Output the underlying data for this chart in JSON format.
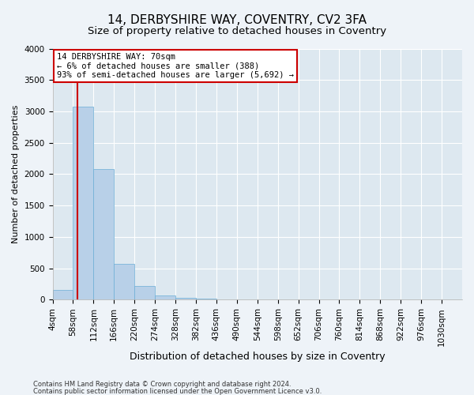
{
  "title1": "14, DERBYSHIRE WAY, COVENTRY, CV2 3FA",
  "title2": "Size of property relative to detached houses in Coventry",
  "xlabel": "Distribution of detached houses by size in Coventry",
  "ylabel": "Number of detached properties",
  "bin_edges": [
    4,
    58,
    112,
    166,
    220,
    274,
    328,
    382,
    436,
    490,
    544,
    598,
    652,
    706,
    760,
    814,
    868,
    922,
    976,
    1030,
    1084
  ],
  "bar_heights": [
    150,
    3080,
    2080,
    570,
    220,
    70,
    30,
    20,
    5,
    2,
    0,
    0,
    0,
    0,
    0,
    0,
    0,
    0,
    0,
    0
  ],
  "bar_color": "#b8d0e8",
  "bar_edge_color": "#6baed6",
  "property_size": 70,
  "vline_color": "#cc0000",
  "annotation_text": "14 DERBYSHIRE WAY: 70sqm\n← 6% of detached houses are smaller (388)\n93% of semi-detached houses are larger (5,692) →",
  "annotation_box_color": "#cc0000",
  "ylim": [
    0,
    4000
  ],
  "yticks": [
    0,
    500,
    1000,
    1500,
    2000,
    2500,
    3000,
    3500,
    4000
  ],
  "background_color": "#eef3f8",
  "plot_bg_color": "#dde8f0",
  "grid_color": "#ffffff",
  "footer1": "Contains HM Land Registry data © Crown copyright and database right 2024.",
  "footer2": "Contains public sector information licensed under the Open Government Licence v3.0.",
  "title1_fontsize": 11,
  "title2_fontsize": 9.5,
  "xlabel_fontsize": 9,
  "ylabel_fontsize": 8,
  "annotation_fontsize": 7.5,
  "tick_fontsize": 7.5,
  "footer_fontsize": 6
}
